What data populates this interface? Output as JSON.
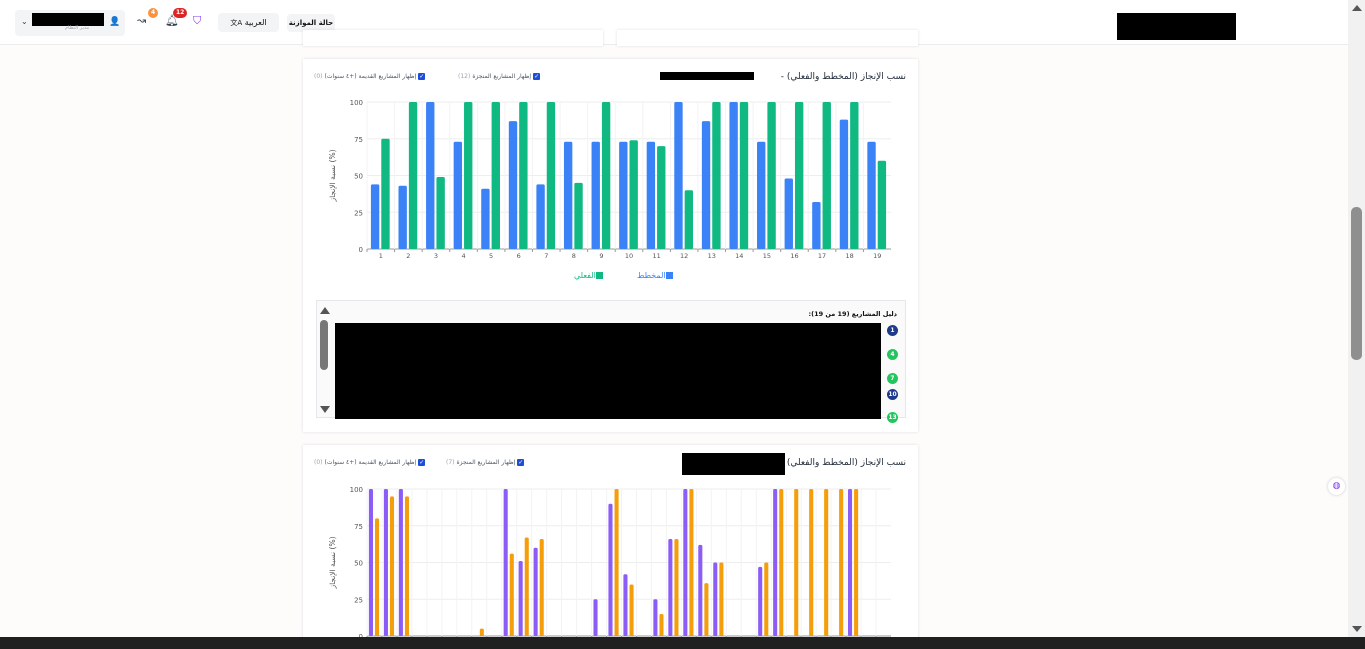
{
  "header": {
    "user_role": "مدير النظام",
    "notifications_count": "12",
    "activity_count": "4",
    "language_label": "العربية",
    "budget_status_label": "حالة الموازنة"
  },
  "chart1_card": {
    "title": "نسب الإنجاز (المخطط والفعلي) -",
    "show_done_label": "إظهار المشاريع المنجزة",
    "show_done_count": "(12)",
    "show_old_label": "إظهار المشاريع القديمة (+٤ سنوات)",
    "show_old_count": "(0)",
    "legend_planned": "المخطط",
    "legend_actual": "الفعلي",
    "project_guide_title": "دليل المشاريع (19 من 19):",
    "guide_numbers": [
      "1",
      "4",
      "7",
      "10",
      "13"
    ]
  },
  "chart2_card": {
    "title": "نسب الإنجاز (المخطط والفعلي) -",
    "show_done_label": "إظهار المشاريع المنجزة",
    "show_done_count": "(7)",
    "show_old_label": "إظهار المشاريع القديمة (+٤ سنوات)",
    "show_old_count": "(0)"
  },
  "colors": {
    "planned1": "#3b82f6",
    "actual1": "#10b981",
    "planned2": "#8b5cf6",
    "actual2": "#f59e0b",
    "guide_blue": "#1e3a8a",
    "guide_green": "#22c55e"
  },
  "chart_data": [
    {
      "type": "bar",
      "ylabel": "نسبة الإنجاز (%)",
      "ylim": [
        0,
        100
      ],
      "yticks": [
        "0",
        "25",
        "50",
        "75",
        "100"
      ],
      "categories": [
        "1",
        "2",
        "3",
        "4",
        "5",
        "6",
        "7",
        "8",
        "9",
        "10",
        "11",
        "12",
        "13",
        "14",
        "15",
        "16",
        "17",
        "18",
        "19"
      ],
      "series": [
        {
          "name": "المخطط",
          "values": [
            44,
            43,
            100,
            73,
            41,
            87,
            44,
            73,
            73,
            73,
            73,
            100,
            87,
            100,
            73,
            48,
            32,
            88,
            73
          ]
        },
        {
          "name": "الفعلي",
          "values": [
            75,
            100,
            49,
            100,
            100,
            100,
            100,
            45,
            100,
            74,
            70,
            40,
            100,
            100,
            100,
            100,
            100,
            100,
            60
          ]
        }
      ],
      "grid": true
    },
    {
      "type": "bar",
      "ylabel": "نسبة الإنجاز (%)",
      "ylim": [
        0,
        100
      ],
      "yticks": [
        "0",
        "25",
        "50",
        "75",
        "100"
      ],
      "series": [
        {
          "values": [
            100,
            100,
            100,
            0,
            0,
            0,
            0,
            0,
            0,
            100,
            51,
            60,
            0,
            0,
            0,
            25,
            90,
            42,
            0,
            25,
            66,
            100,
            62,
            50,
            0,
            0,
            47,
            100,
            0,
            0,
            0,
            0,
            100,
            0,
            0
          ]
        },
        {
          "values": [
            80,
            95,
            95,
            0,
            0,
            0,
            0,
            5,
            0,
            56,
            67,
            66,
            0,
            0,
            0,
            0,
            100,
            35,
            0,
            15,
            66,
            100,
            36,
            50,
            0,
            0,
            50,
            100,
            100,
            100,
            100,
            100,
            100,
            0,
            0
          ]
        }
      ],
      "grid": true
    }
  ]
}
